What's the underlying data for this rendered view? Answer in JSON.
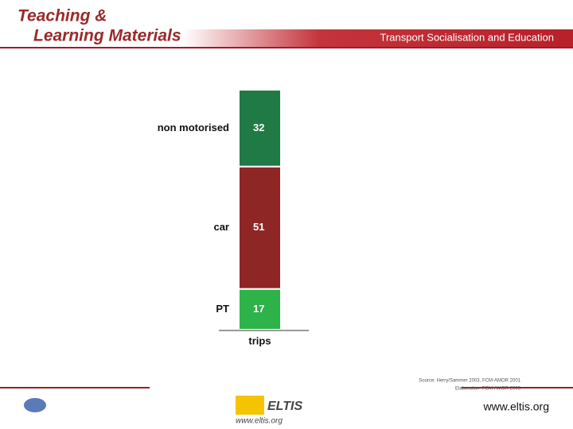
{
  "header": {
    "title_line1": "Teaching &",
    "title_line2": "Learning Materials",
    "banner": "Transport Socialisation and Education"
  },
  "chart_data": {
    "type": "stacked_bar",
    "categories": [
      "trips"
    ],
    "ylim": [
      0,
      100
    ],
    "series": [
      {
        "name": "PT",
        "color": "#2db34a",
        "values": [
          17
        ]
      },
      {
        "name": "car",
        "color": "#8e2626",
        "values": [
          51
        ]
      },
      {
        "name": "non motorised",
        "color": "#1f7a45",
        "values": [
          32
        ]
      }
    ]
  },
  "footer": {
    "source_line1": "Source: Herry/Sammer 2003, FCM-AMOR 2001",
    "source_line2": "Elaboration: FGM-AMOR 2005",
    "logo_text": "ELTIS",
    "logo_url": "www.eltis.org",
    "url": "www.eltis.org"
  }
}
